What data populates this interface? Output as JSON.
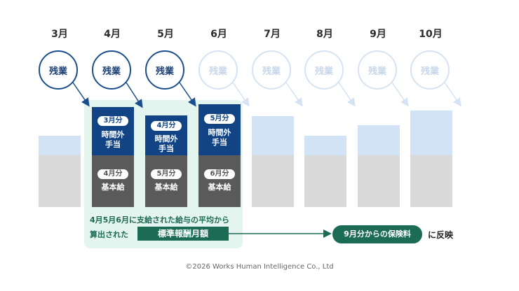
{
  "months": [
    "3月",
    "4月",
    "5月",
    "6月",
    "7月",
    "8月",
    "9月",
    "10月"
  ],
  "overtime_label": "残業",
  "bars": {
    "overtime_pills": [
      "3月分",
      "4月分",
      "5月分"
    ],
    "overtime_text": [
      "時間外",
      "手当"
    ],
    "base_pills": [
      "4月分",
      "5月分",
      "6月分"
    ],
    "base_text": "基本給"
  },
  "caption": {
    "line1": "4月5月6月に支給された給与の平均から",
    "line2": "算出された",
    "box": "標準報酬月額"
  },
  "result": {
    "pill": "9月分からの保険料",
    "suffix": "に反映"
  },
  "copyright": "©2026 Works Human Intelligence Co., Ltd",
  "colors": {
    "navy": "#124485",
    "dark_grey": "#5a5a5a",
    "light_blue": "#d3e3f6",
    "light_grey": "#d9d9d9",
    "green": "#1c6b55",
    "panel_green": "#e4f4ee"
  }
}
